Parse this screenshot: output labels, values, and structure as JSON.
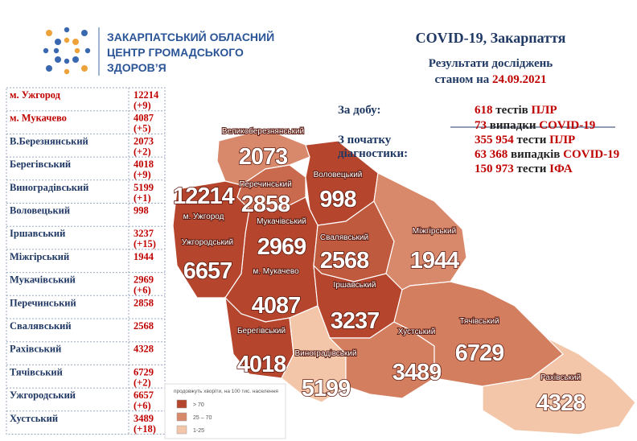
{
  "header": {
    "org": [
      "ЗАКАРПАТСЬКИЙ ОБЛАСНИЙ",
      "ЦЕНТР ГРОМАДСЬКОГО",
      "ЗДОРОВ’Я"
    ],
    "title": "COVID-19, Закарпаття",
    "subtitle": "Результати досліджень",
    "date_prefix": "станом на",
    "date": "24.09.2021"
  },
  "stats": {
    "daily_label": "За добу:",
    "daily": [
      {
        "count": "618",
        "unit": "тестів",
        "what": "ПЛР"
      },
      {
        "count": "73",
        "unit": "випадки",
        "what": "COVID-19"
      }
    ],
    "total_label": [
      "З початку",
      "діагностики:"
    ],
    "total": [
      {
        "count": "355 954",
        "unit": "тести",
        "what": "ПЛР"
      },
      {
        "count": "63 368",
        "unit": "випадків",
        "what": "COVID-19"
      },
      {
        "count": "150 973",
        "unit": "тести",
        "what": "ІФА"
      }
    ]
  },
  "table": {
    "rows": [
      [
        "м. Ужгород",
        "12214",
        "(+9)"
      ],
      [
        "м. Мукачево",
        "4087",
        "(+5)"
      ],
      [
        "В.Березнянський",
        "2073",
        "(+2)"
      ],
      [
        "Берегівський",
        "4018",
        "(+9)"
      ],
      [
        "Виноградівський",
        "5199",
        "(+1)"
      ],
      [
        "Воловецький",
        "998"
      ],
      [
        "Іршавський",
        "3237",
        "(+15)"
      ],
      [
        "Міжгірський",
        "1944"
      ],
      [
        "Мукачівський",
        "2969",
        "(+6)"
      ],
      [
        "Перечинський",
        "2858"
      ],
      [
        "Свалявський",
        "2568"
      ],
      [
        "Рахівський",
        "4328"
      ],
      [
        "Тячівський",
        "6729",
        "(+2)"
      ],
      [
        "Ужгородський",
        "6657",
        "(+6)"
      ],
      [
        "Хустський",
        "3489",
        "(+18)"
      ]
    ]
  },
  "map": {
    "regions": [
      {
        "name": "Великоберезнянський",
        "value": "2073",
        "color": "#d9896b"
      },
      {
        "name": "Перечинський",
        "value": "2858",
        "color": "#c9694d"
      },
      {
        "name": "Воловецький",
        "value": "998",
        "color": "#b5452c"
      },
      {
        "name": "Мукачівський",
        "value": "2969",
        "color": "#b5452c"
      },
      {
        "name": "Свалявський",
        "value": "2568",
        "color": "#bf5a3e"
      },
      {
        "name": "Ужгородський",
        "value": "6657",
        "color": "#b5452c"
      },
      {
        "name": "Міжгірський",
        "value": "1944",
        "color": "#d9896b"
      },
      {
        "name": "Іршавський",
        "value": "3237",
        "color": "#b5452c"
      },
      {
        "name": "Берегівський",
        "value": "4018",
        "color": "#b5452c"
      },
      {
        "name": "Виноградівський",
        "value": "5199",
        "color": "#f3c6a9"
      },
      {
        "name": "Хустський",
        "value": "3489",
        "color": "#d47e60"
      },
      {
        "name": "Тячівський",
        "value": "6729",
        "color": "#d47e60"
      },
      {
        "name": "Рахівський",
        "value": "4328",
        "color": "#f3c6a9"
      }
    ],
    "cities": [
      {
        "name": "м. Ужгород",
        "value": "12214"
      },
      {
        "name": "м. Мукачево",
        "value": "4087"
      }
    ]
  },
  "legend": {
    "title": "продовжуть хворіти, на 100 тис. населення",
    "items": [
      {
        "label": "> 70",
        "color": "#b5452c"
      },
      {
        "label": "25 – 70",
        "color": "#d9896b"
      },
      {
        "label": "1-25",
        "color": "#f3c6a9"
      }
    ]
  }
}
